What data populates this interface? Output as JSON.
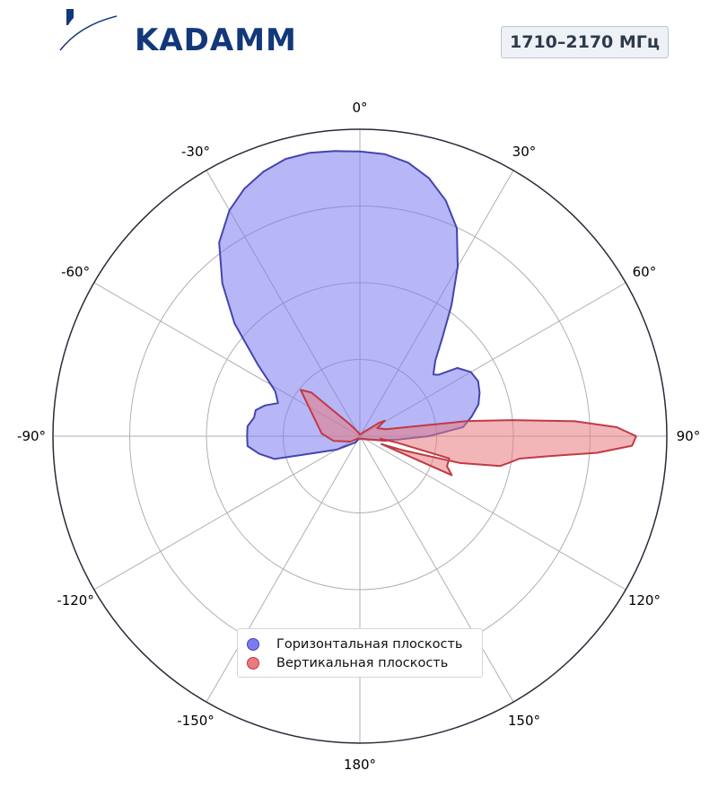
{
  "logo": {
    "text": "KADAMM"
  },
  "band": "1710–2170 МГц",
  "chart_data": {
    "type": "polar-area",
    "theta_zero": "top",
    "theta_direction": "clockwise",
    "theta_unit": "degrees",
    "angle_ticks": [
      0,
      30,
      60,
      90,
      120,
      150,
      180,
      -150,
      -120,
      -90,
      -60,
      -30
    ],
    "angle_tick_labels": [
      "0°",
      "30°",
      "60°",
      "90°",
      "120°",
      "150°",
      "180°",
      "-150°",
      "-120°",
      "-90°",
      "-60°",
      "-30°"
    ],
    "radial_range": [
      0,
      4
    ],
    "radial_rings": [
      1,
      2,
      3,
      4
    ],
    "grid": true,
    "legend_position": "bottom-center",
    "series": [
      {
        "name": "Горизонтальная плоскость",
        "fill": "#7b7bf0",
        "stroke": "#4444b0",
        "fill_opacity": 0.55,
        "points": [
          [
            0,
            3.71
          ],
          [
            5,
            3.69
          ],
          [
            10,
            3.62
          ],
          [
            15,
            3.48
          ],
          [
            20,
            3.27
          ],
          [
            25,
            2.99
          ],
          [
            30,
            2.55
          ],
          [
            35,
            2.08
          ],
          [
            40,
            1.67
          ],
          [
            45,
            1.39
          ],
          [
            50,
            1.25
          ],
          [
            52,
            1.3
          ],
          [
            55,
            1.55
          ],
          [
            60,
            1.67
          ],
          [
            65,
            1.7
          ],
          [
            70,
            1.66
          ],
          [
            75,
            1.6
          ],
          [
            80,
            1.48
          ],
          [
            85,
            1.35
          ],
          [
            90,
            0.9
          ],
          [
            95,
            0.5
          ],
          [
            100,
            0.28
          ],
          [
            110,
            0.12
          ],
          [
            130,
            0.05
          ],
          [
            160,
            0.04
          ],
          [
            180,
            0.03
          ],
          [
            -160,
            0.04
          ],
          [
            -145,
            0.1
          ],
          [
            -120,
            0.35
          ],
          [
            -110,
            0.65
          ],
          [
            -105,
            1.15
          ],
          [
            -100,
            1.33
          ],
          [
            -95,
            1.47
          ],
          [
            -90,
            1.47
          ],
          [
            -85,
            1.47
          ],
          [
            -80,
            1.4
          ],
          [
            -76,
            1.4
          ],
          [
            -72,
            1.3
          ],
          [
            -68,
            1.15
          ],
          [
            -62,
            1.25
          ],
          [
            -55,
            1.62
          ],
          [
            -48,
            2.2
          ],
          [
            -42,
            2.68
          ],
          [
            -36,
            3.12
          ],
          [
            -30,
            3.4
          ],
          [
            -25,
            3.56
          ],
          [
            -20,
            3.67
          ],
          [
            -15,
            3.74
          ],
          [
            -10,
            3.75
          ],
          [
            -5,
            3.73
          ],
          [
            0,
            3.71
          ]
        ]
      },
      {
        "name": "Вертикальная плоскость",
        "fill": "#e87a80",
        "stroke": "#c03a44",
        "fill_opacity": 0.55,
        "points": [
          [
            0,
            0.02
          ],
          [
            30,
            0.04
          ],
          [
            55,
            0.3
          ],
          [
            58,
            0.38
          ],
          [
            65,
            0.25
          ],
          [
            75,
            0.35
          ],
          [
            82,
            1.42
          ],
          [
            84,
            2.0
          ],
          [
            86,
            2.8
          ],
          [
            88,
            3.35
          ],
          [
            90,
            3.6
          ],
          [
            92,
            3.55
          ],
          [
            94,
            3.1
          ],
          [
            96,
            2.48
          ],
          [
            98,
            2.1
          ],
          [
            100,
            1.98
          ],
          [
            102,
            1.87
          ],
          [
            105,
            1.35
          ],
          [
            108,
            0.6
          ],
          [
            110,
            0.3
          ],
          [
            113,
            1.3
          ],
          [
            109,
            1.2
          ],
          [
            104,
            1.2
          ],
          [
            100,
            0.5
          ],
          [
            97,
            0.27
          ],
          [
            100,
            0.35
          ],
          [
            140,
            0.05
          ],
          [
            180,
            0.03
          ],
          [
            -140,
            0.04
          ],
          [
            -120,
            0.14
          ],
          [
            -100,
            0.35
          ],
          [
            -86,
            0.5
          ],
          [
            -52,
            0.98
          ],
          [
            -48,
            0.85
          ],
          [
            -40,
            0.2
          ],
          [
            -20,
            0.05
          ],
          [
            0,
            0.02
          ]
        ]
      }
    ]
  }
}
